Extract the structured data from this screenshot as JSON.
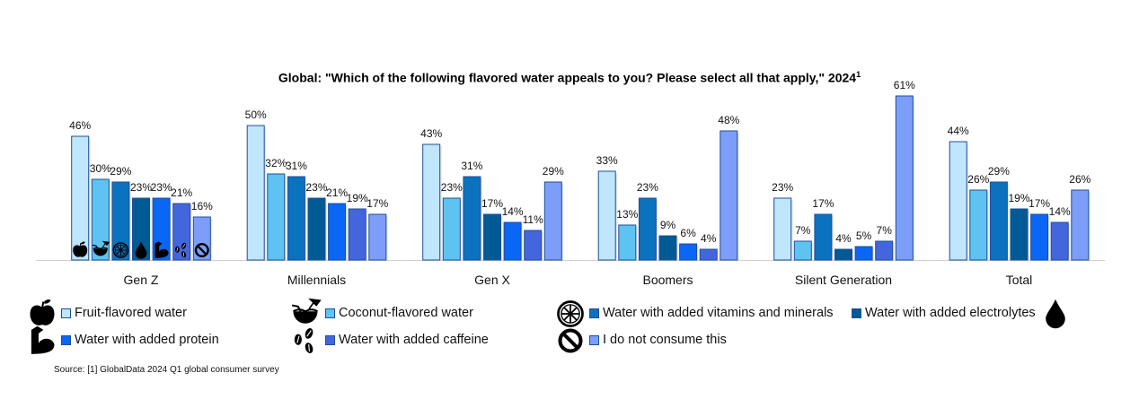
{
  "chart_data": {
    "type": "bar",
    "title": "Global: \"Which of the following flavored water appeals to you? Please select all that apply,\" 2024",
    "title_superscript": "1",
    "categories": [
      "Gen Z",
      "Millennials",
      "Gen X",
      "Boomers",
      "Silent Generation",
      "Total"
    ],
    "series": [
      {
        "name": "Fruit-flavored water",
        "color": "#BFE6FA",
        "icon": "apple-icon",
        "values": [
          46,
          50,
          43,
          33,
          23,
          44
        ]
      },
      {
        "name": "Coconut-flavored water",
        "color": "#5EC3F0",
        "icon": "coconut-icon",
        "values": [
          30,
          32,
          23,
          13,
          7,
          26
        ]
      },
      {
        "name": "Water with added vitamins and minerals",
        "color": "#0A72BE",
        "icon": "citrus-wheel-icon",
        "values": [
          29,
          31,
          31,
          23,
          17,
          29
        ]
      },
      {
        "name": "Water with added electrolytes",
        "color": "#005A94",
        "icon": "water-drop-icon",
        "values": [
          23,
          23,
          17,
          9,
          4,
          19
        ]
      },
      {
        "name": "Water with added protein",
        "color": "#0A66F5",
        "icon": "muscle-arm-icon",
        "values": [
          23,
          21,
          14,
          6,
          5,
          17
        ]
      },
      {
        "name": "Water with added caffeine",
        "color": "#4466DD",
        "icon": "coffee-beans-icon",
        "values": [
          21,
          19,
          11,
          4,
          7,
          14
        ]
      },
      {
        "name": "I do not consume this",
        "color": "#7C9EF8",
        "icon": "prohibited-icon",
        "values": [
          16,
          17,
          29,
          48,
          61,
          26
        ]
      }
    ],
    "value_format": "percent",
    "ylim": [
      0,
      65
    ],
    "grid": false,
    "legend_placement": "bottom"
  },
  "source": "Source: [1] GlobalData 2024 Q1 global consumer survey"
}
